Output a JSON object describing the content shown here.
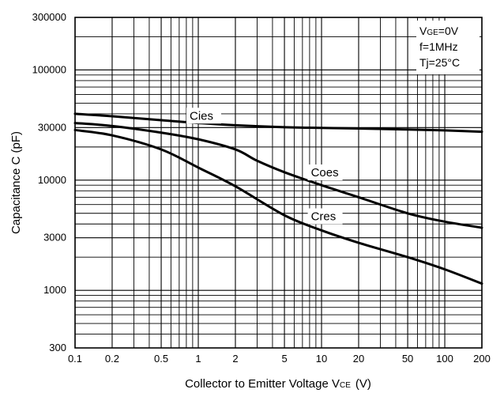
{
  "chart_data": {
    "type": "line",
    "title": "",
    "xlabel": {
      "main": "Collector to Emitter Voltage V",
      "sub": "CE",
      "unit": "(V)"
    },
    "ylabel": "Capacitance C  (pF)",
    "x_scale": "log",
    "y_scale": "log",
    "xlim": [
      0.1,
      200
    ],
    "ylim": [
      300,
      300000
    ],
    "grid": true,
    "x_ticks": [
      0.1,
      0.2,
      0.5,
      1,
      2,
      5,
      10,
      20,
      50,
      100,
      200
    ],
    "x_tick_labels": [
      "0.1",
      "0.2",
      "0.5",
      "1",
      "2",
      "5",
      "10",
      "20",
      "50",
      "100",
      "200"
    ],
    "y_ticks": [
      300,
      1000,
      3000,
      10000,
      30000,
      100000,
      300000
    ],
    "y_tick_labels": [
      "300",
      "1000",
      "3000",
      "10000",
      "30000",
      "100000",
      "300000"
    ],
    "conditions": [
      {
        "main": "V",
        "sub": "GE",
        "rest": "=0V"
      },
      {
        "main": "f=1MHz",
        "sub": "",
        "rest": ""
      },
      {
        "main": "Tj=25°C",
        "sub": "",
        "rest": ""
      }
    ],
    "series": [
      {
        "name": "Cies",
        "label_at": [
          0.85,
          36000
        ],
        "points": [
          [
            0.1,
            40000
          ],
          [
            0.2,
            38000
          ],
          [
            0.5,
            35000
          ],
          [
            1,
            33000
          ],
          [
            2,
            31500
          ],
          [
            5,
            30200
          ],
          [
            10,
            29800
          ],
          [
            20,
            29400
          ],
          [
            50,
            28800
          ],
          [
            100,
            28300
          ],
          [
            200,
            27500
          ]
        ]
      },
      {
        "name": "Coes",
        "label_at": [
          8.2,
          11000
        ],
        "points": [
          [
            0.1,
            33000
          ],
          [
            0.2,
            31000
          ],
          [
            0.5,
            27000
          ],
          [
            1,
            23500
          ],
          [
            2,
            19000
          ],
          [
            3,
            15000
          ],
          [
            5,
            11800
          ],
          [
            10,
            9000
          ],
          [
            20,
            7000
          ],
          [
            50,
            5000
          ],
          [
            100,
            4200
          ],
          [
            200,
            3700
          ]
        ]
      },
      {
        "name": "Cres",
        "label_at": [
          8.2,
          4400
        ],
        "points": [
          [
            0.1,
            28500
          ],
          [
            0.2,
            25500
          ],
          [
            0.5,
            19000
          ],
          [
            1,
            13000
          ],
          [
            2,
            8800
          ],
          [
            5,
            4800
          ],
          [
            10,
            3500
          ],
          [
            20,
            2700
          ],
          [
            50,
            2000
          ],
          [
            100,
            1550
          ],
          [
            200,
            1150
          ]
        ]
      }
    ]
  }
}
